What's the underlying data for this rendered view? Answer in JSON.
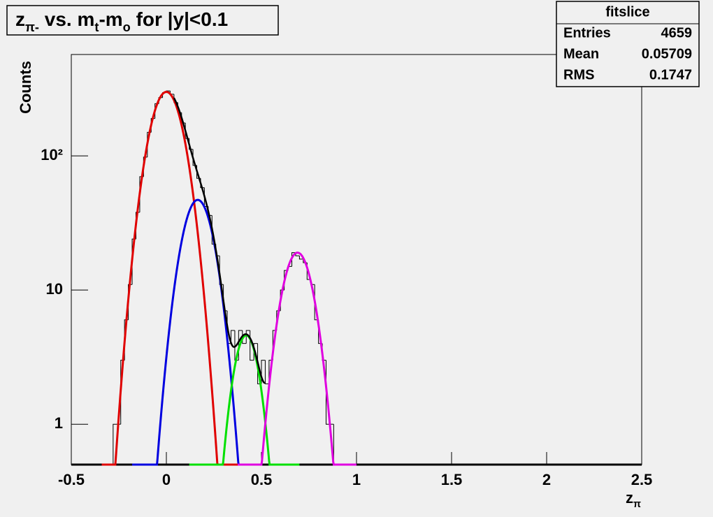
{
  "chart_data": {
    "type": "histogram",
    "title": [
      {
        "text": "z"
      },
      {
        "text": "π-",
        "sub": true
      },
      {
        "text": " vs. m"
      },
      {
        "text": "t",
        "sub": true
      },
      {
        "text": "-m"
      },
      {
        "text": "o",
        "sub": true
      },
      {
        "text": " for |y|<0.1"
      }
    ],
    "y_label": "Counts",
    "x_label": [
      {
        "text": "z"
      },
      {
        "text": "π",
        "sub": true
      }
    ],
    "stats": {
      "title": "fitslice",
      "rows": [
        [
          "Entries",
          4659
        ],
        [
          "Mean",
          0.05709
        ],
        [
          "RMS",
          0.1747
        ]
      ]
    },
    "log_y": true,
    "xlim": [
      -0.5,
      2.5
    ],
    "xticks": [
      -0.5,
      0,
      0.5,
      1,
      1.5,
      2,
      2.5
    ],
    "ylim": [
      0.5,
      570
    ],
    "yticks": [
      1,
      10,
      {
        "value": 100,
        "label": "10²"
      }
    ],
    "color": "#000000",
    "bins": [
      -0.28,
      -0.26,
      -0.24,
      -0.22,
      -0.2,
      -0.18,
      -0.16,
      -0.14,
      -0.12,
      -0.1,
      -0.08,
      -0.06,
      -0.04,
      -0.02,
      0,
      0.02,
      0.04,
      0.06,
      0.08,
      0.1,
      0.12,
      0.14,
      0.16,
      0.18,
      0.2,
      0.22,
      0.24,
      0.26,
      0.28,
      0.3,
      0.32,
      0.34,
      0.36,
      0.38,
      0.4,
      0.42,
      0.44,
      0.46,
      0.48,
      0.5,
      0.52,
      0.54,
      0.56,
      0.58,
      0.6,
      0.62,
      0.64,
      0.66,
      0.68,
      0.7,
      0.72,
      0.74,
      0.76,
      0.78,
      0.8,
      0.82,
      0.84,
      0.86,
      0.88,
      0.9
    ],
    "counts": [
      1,
      1,
      3,
      6,
      11,
      24,
      38,
      70,
      98,
      150,
      190,
      245,
      272,
      296,
      305,
      288,
      250,
      210,
      176,
      135,
      112,
      85,
      68,
      58,
      42,
      36,
      22,
      18,
      11,
      7,
      4,
      5,
      3,
      5,
      4,
      5,
      3,
      4,
      2,
      3,
      2,
      3,
      5,
      7,
      10,
      14,
      15,
      19,
      18,
      17,
      16,
      12,
      11,
      6,
      4,
      3,
      1,
      1,
      0
    ],
    "fits": [
      {
        "color": "#e00000",
        "constant": 300,
        "mean": 0,
        "sigma": 0.075,
        "xrange": [
          -0.34,
          0.375
        ]
      },
      {
        "color": "#0000e0",
        "constant": 47,
        "mean": 0.165,
        "sigma": 0.071,
        "xrange": [
          -0.18,
          0.39
        ]
      },
      {
        "color": "#00e000",
        "constant": 4.6,
        "mean": 0.42,
        "sigma": 0.058,
        "xrange": [
          0.12,
          0.7
        ]
      },
      {
        "color": "#e000e0",
        "constant": 19,
        "mean": 0.69,
        "sigma": 0.07,
        "xrange": [
          0.375,
          1.0
        ]
      }
    ],
    "total_fit": {
      "color": "#000000",
      "xrange": [
        0.04,
        0.52
      ]
    }
  }
}
